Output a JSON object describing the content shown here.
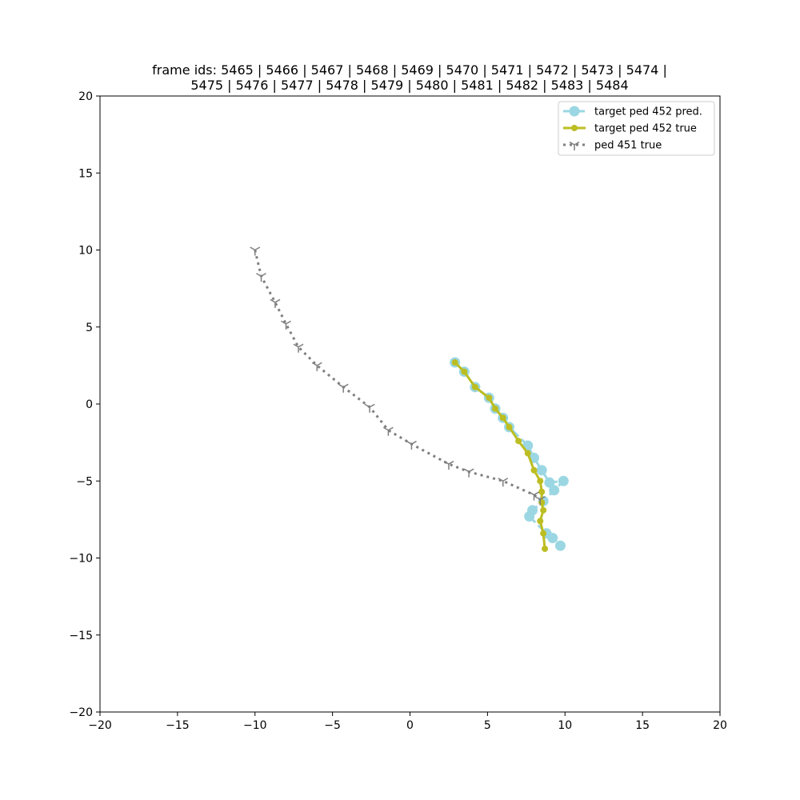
{
  "chart_data": {
    "type": "scatter",
    "title_line1": "frame ids: 5465 | 5466 | 5467 | 5468 | 5469 | 5470 | 5471 | 5472 | 5473 | 5474 |",
    "title_line2": "5475 | 5476 | 5477 | 5478 | 5479 | 5480 | 5481 | 5482 | 5483 | 5484",
    "xlabel": "",
    "ylabel": "",
    "xlim": [
      -20,
      20
    ],
    "ylim": [
      -20,
      20
    ],
    "xticks": [
      -20,
      -15,
      -10,
      -5,
      0,
      5,
      10,
      15,
      20
    ],
    "yticks": [
      -20,
      -15,
      -10,
      -5,
      0,
      5,
      10,
      15,
      20
    ],
    "grid": false,
    "legend_position": "top-right",
    "series": [
      {
        "name": "target ped 452 pred.",
        "color": "#9bd7e3",
        "line": "dashed",
        "marker": "circle-large",
        "points": [
          [
            2.9,
            2.7
          ],
          [
            3.5,
            2.1
          ],
          [
            4.2,
            1.1
          ],
          [
            5.1,
            0.4
          ],
          [
            5.5,
            -0.3
          ],
          [
            6.0,
            -0.9
          ],
          [
            6.4,
            -1.5
          ],
          [
            7.6,
            -2.7
          ],
          [
            8.0,
            -3.5
          ],
          [
            8.5,
            -4.3
          ],
          [
            9.0,
            -5.1
          ],
          [
            9.9,
            -5.0
          ],
          [
            9.3,
            -5.6
          ],
          [
            8.6,
            -6.3
          ],
          [
            7.9,
            -6.9
          ],
          [
            7.7,
            -7.3
          ],
          [
            8.8,
            -8.4
          ],
          [
            9.2,
            -8.7
          ],
          [
            9.7,
            -9.2
          ]
        ]
      },
      {
        "name": "target ped 452 true",
        "color": "#bcbd22",
        "line": "solid",
        "marker": "dot",
        "points": [
          [
            2.9,
            2.7
          ],
          [
            3.5,
            2.1
          ],
          [
            4.2,
            1.1
          ],
          [
            5.1,
            0.4
          ],
          [
            5.5,
            -0.3
          ],
          [
            6.0,
            -0.9
          ],
          [
            6.4,
            -1.5
          ],
          [
            7.0,
            -2.4
          ],
          [
            7.6,
            -3.2
          ],
          [
            8.0,
            -4.3
          ],
          [
            8.4,
            -5.0
          ],
          [
            8.5,
            -5.7
          ],
          [
            8.5,
            -6.4
          ],
          [
            8.6,
            -6.9
          ],
          [
            8.4,
            -7.6
          ],
          [
            8.6,
            -8.4
          ],
          [
            8.7,
            -9.4
          ]
        ]
      },
      {
        "name": "ped 451 true",
        "color": "#7f7f7f",
        "line": "dotted",
        "marker": "tri",
        "points": [
          [
            -10.0,
            10.0
          ],
          [
            -9.6,
            8.3
          ],
          [
            -8.7,
            6.6
          ],
          [
            -8.0,
            5.2
          ],
          [
            -7.2,
            3.7
          ],
          [
            -6.0,
            2.5
          ],
          [
            -4.3,
            1.1
          ],
          [
            -2.6,
            -0.2
          ],
          [
            -1.4,
            -1.7
          ],
          [
            0.1,
            -2.6
          ],
          [
            2.5,
            -3.9
          ],
          [
            3.8,
            -4.4
          ],
          [
            6.0,
            -5.0
          ],
          [
            8.0,
            -5.9
          ],
          [
            8.4,
            -6.2
          ]
        ]
      }
    ]
  }
}
